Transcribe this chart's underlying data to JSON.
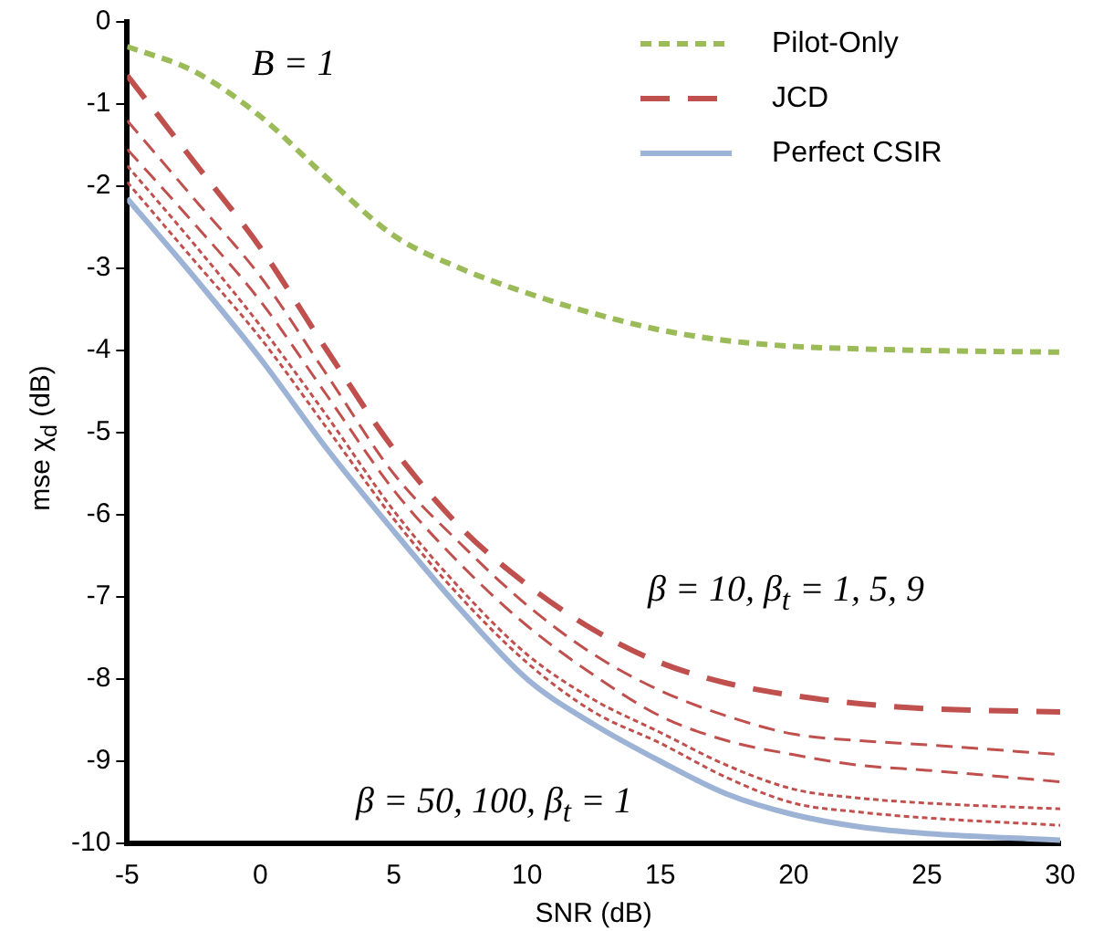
{
  "chart_data": {
    "type": "line",
    "xlabel": "SNR (dB)",
    "ylabel": "mse χ$_{d}$ (dB)",
    "x": [
      -5,
      -2.5,
      0,
      2.5,
      5,
      7.5,
      10,
      12.5,
      15,
      17.5,
      20,
      22.5,
      25,
      30
    ],
    "series": [
      {
        "name": "Pilot-Only",
        "color": "#9bbb59",
        "line_style": "dotted",
        "values": [
          -0.3,
          -0.6,
          -1.15,
          -1.9,
          -2.6,
          -3.0,
          -3.3,
          -3.55,
          -3.75,
          -3.88,
          -3.95,
          -3.98,
          -4.0,
          -4.02
        ]
      },
      {
        "name": "JCD",
        "color": "#c0504d",
        "line_style": "dashed",
        "values": [
          -0.65,
          -1.7,
          -2.75,
          -4.0,
          -5.2,
          -6.15,
          -6.85,
          -7.4,
          -7.8,
          -8.05,
          -8.2,
          -8.3,
          -8.36,
          -8.4
        ]
      },
      {
        "color": "#c0504d",
        "line_style": "dashed",
        "values": [
          -1.2,
          -2.15,
          -3.1,
          -4.3,
          -5.5,
          -6.35,
          -7.1,
          -7.7,
          -8.14,
          -8.45,
          -8.67,
          -8.75,
          -8.8,
          -8.92
        ]
      },
      {
        "color": "#c0504d",
        "line_style": "dashed",
        "values": [
          -1.55,
          -2.45,
          -3.4,
          -4.55,
          -5.7,
          -6.6,
          -7.35,
          -7.95,
          -8.45,
          -8.75,
          -8.92,
          -9.05,
          -9.11,
          -9.25
        ]
      },
      {
        "color": "#c0504d",
        "line_style": "dotted",
        "values": [
          -1.75,
          -2.7,
          -3.7,
          -4.8,
          -5.95,
          -6.9,
          -7.7,
          -8.25,
          -8.65,
          -9.05,
          -9.34,
          -9.45,
          -9.51,
          -9.58
        ]
      },
      {
        "color": "#c0504d",
        "line_style": "dotted",
        "values": [
          -1.95,
          -2.9,
          -3.85,
          -4.95,
          -6.05,
          -7.0,
          -7.8,
          -8.4,
          -8.78,
          -9.2,
          -9.51,
          -9.62,
          -9.69,
          -9.78
        ]
      },
      {
        "name": "Perfect CSIR",
        "color": "#9db3d6",
        "line_style": "solid",
        "values": [
          -2.15,
          -3.1,
          -4.1,
          -5.2,
          -6.2,
          -7.15,
          -8.0,
          -8.55,
          -9.0,
          -9.4,
          -9.65,
          -9.8,
          -9.88,
          -9.96
        ]
      }
    ],
    "xlim": [
      -5,
      30
    ],
    "xticks": [
      -5,
      0,
      5,
      10,
      15,
      20,
      25,
      30
    ],
    "ylim": [
      -10,
      0
    ],
    "yticks": [
      -10,
      -9,
      -8,
      -7,
      -6,
      -5,
      -4,
      -3,
      -2,
      -1,
      0
    ],
    "grid": false,
    "legend": "top right",
    "marker": "none",
    "annotations": [
      "B = 1",
      "β = 10, β$_{t}$ = 1, 5, 9",
      "β = 50, 100, β$_{t}$ = 1"
    ]
  }
}
